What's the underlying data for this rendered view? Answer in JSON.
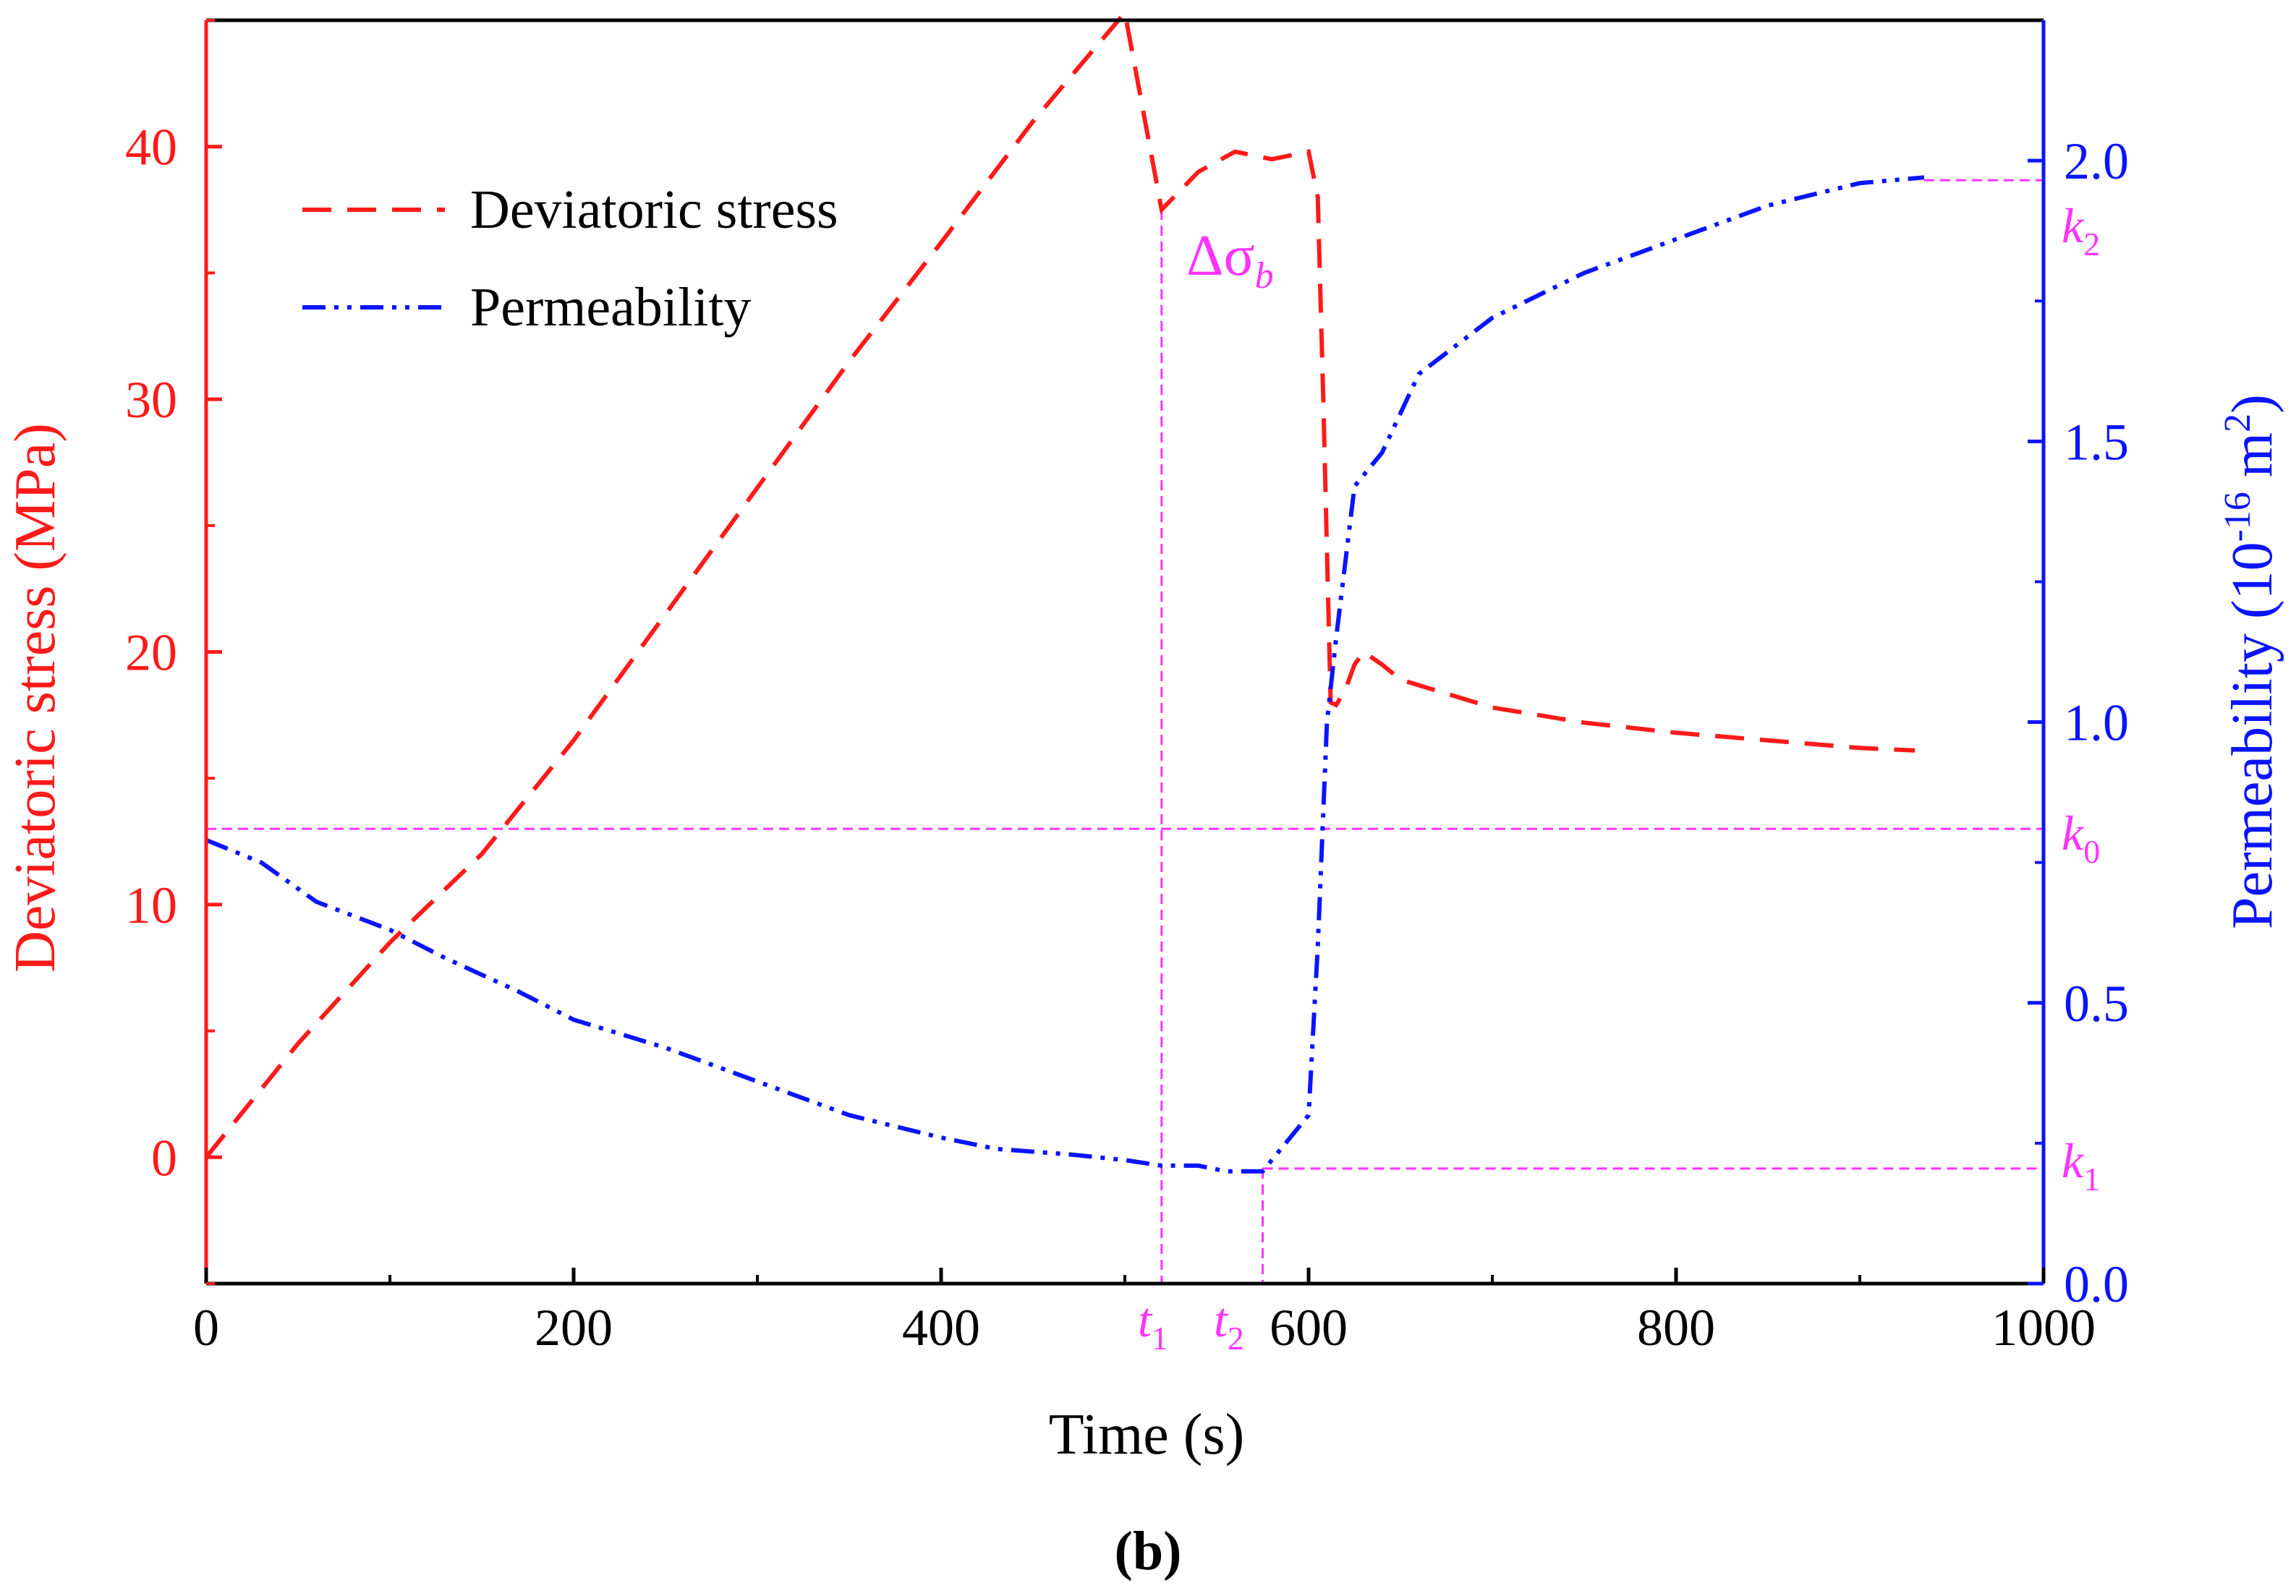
{
  "colors": {
    "stress": "#ff1a1a",
    "permeability": "#0a14ff",
    "reference": "#ff33ff",
    "axis": "#000000"
  },
  "panel_label": "(b)",
  "chart_data": {
    "type": "line",
    "title": "",
    "xlabel": "Time (s)",
    "ylabel_left": "Deviatoric stress (MPa)",
    "ylabel_right": "Permeability (10-16 m2)",
    "ylabel_right_parts": {
      "main": "Permeability (10",
      "exp": "-16",
      "mid": " m",
      "sq": "2",
      "end": ")"
    },
    "xlim": [
      0,
      1000
    ],
    "ylim_left": [
      -5,
      45
    ],
    "ylim_right": [
      0,
      2.25
    ],
    "x_ticks": [
      0,
      200,
      400,
      600,
      800,
      1000
    ],
    "x_tick_labels": [
      "0",
      "200",
      "400",
      "600",
      "800",
      "1000"
    ],
    "y_left_ticks": [
      0,
      10,
      20,
      30,
      40
    ],
    "y_left_tick_labels": [
      "0",
      "10",
      "20",
      "30",
      "40"
    ],
    "y_right_ticks": [
      0,
      0.5,
      1.0,
      1.5,
      2.0
    ],
    "y_right_tick_labels": [
      "0.0",
      "0.5",
      "1.0",
      "1.5",
      "2.0"
    ],
    "legend": {
      "position": "top-left",
      "entries": [
        {
          "label": "Deviatoric stress",
          "series": "stress"
        },
        {
          "label": "Permeability",
          "series": "permeability"
        }
      ]
    },
    "series": [
      {
        "name": "Deviatoric stress",
        "axis": "left",
        "style": "dashed",
        "x": [
          0,
          50,
          100,
          150,
          200,
          250,
          300,
          350,
          400,
          450,
          500,
          520,
          540,
          560,
          580,
          600,
          605,
          608,
          612,
          615,
          620,
          625,
          630,
          640,
          650,
          700,
          750,
          800,
          850,
          900,
          930
        ],
        "y": [
          0,
          4.5,
          8.5,
          12.0,
          16.5,
          21.5,
          26.5,
          31.5,
          36.2,
          41.0,
          45.3,
          37.5,
          39.0,
          39.8,
          39.5,
          39.8,
          38.0,
          30.0,
          18.0,
          17.9,
          18.5,
          19.5,
          20.0,
          19.5,
          18.9,
          17.8,
          17.2,
          16.8,
          16.5,
          16.2,
          16.1
        ]
      },
      {
        "name": "Permeability",
        "axis": "right",
        "style": "dashdotdot",
        "x": [
          0,
          30,
          60,
          100,
          130,
          170,
          200,
          250,
          300,
          350,
          400,
          430,
          470,
          500,
          520,
          540,
          555,
          575,
          590,
          600,
          605,
          610,
          615,
          625,
          640,
          660,
          700,
          750,
          800,
          850,
          900,
          935
        ],
        "y": [
          0.79,
          0.75,
          0.68,
          0.63,
          0.58,
          0.52,
          0.47,
          0.42,
          0.36,
          0.3,
          0.26,
          0.24,
          0.23,
          0.22,
          0.21,
          0.21,
          0.2,
          0.2,
          0.26,
          0.3,
          0.6,
          1.0,
          1.15,
          1.42,
          1.48,
          1.62,
          1.72,
          1.8,
          1.86,
          1.92,
          1.96,
          1.97
        ]
      }
    ],
    "reference_lines": {
      "k0": 0.81,
      "k1": 0.205,
      "k2": 1.965,
      "t1": 520,
      "t2": 575,
      "delta_sigma_top": 37.5
    },
    "annotations": {
      "delta_sigma": "Δσ",
      "delta_sigma_sub": "b",
      "k0_base": "k",
      "k0_sub": "0",
      "k1_base": "k",
      "k1_sub": "1",
      "k2_base": "k",
      "k2_sub": "2",
      "t1_base": "t",
      "t1_sub": "1",
      "t2_base": "t",
      "t2_sub": "2"
    }
  }
}
